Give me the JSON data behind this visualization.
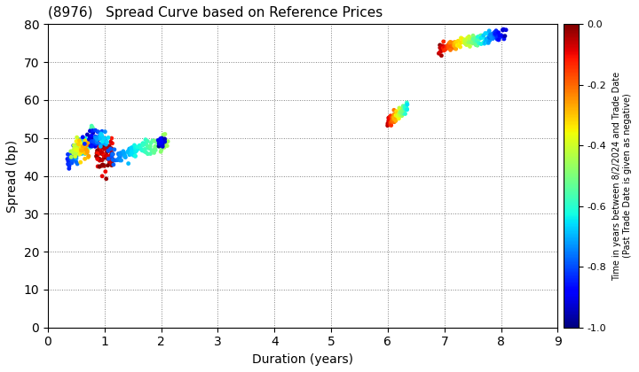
{
  "title": "(8976)   Spread Curve based on Reference Prices",
  "xlabel": "Duration (years)",
  "ylabel": "Spread (bp)",
  "colorbar_label_line1": "Time in years between 8/2/2024 and Trade Date",
  "colorbar_label_line2": "(Past Trade Date is given as negative)",
  "xlim": [
    0,
    9
  ],
  "ylim": [
    0,
    80
  ],
  "xticks": [
    0,
    1,
    2,
    3,
    4,
    5,
    6,
    7,
    8,
    9
  ],
  "yticks": [
    0,
    10,
    20,
    30,
    40,
    50,
    60,
    70,
    80
  ],
  "cmap": "jet",
  "clim": [
    -1.0,
    0.0
  ],
  "figsize": [
    7.2,
    4.2
  ],
  "dpi": 100,
  "point_size": 12
}
